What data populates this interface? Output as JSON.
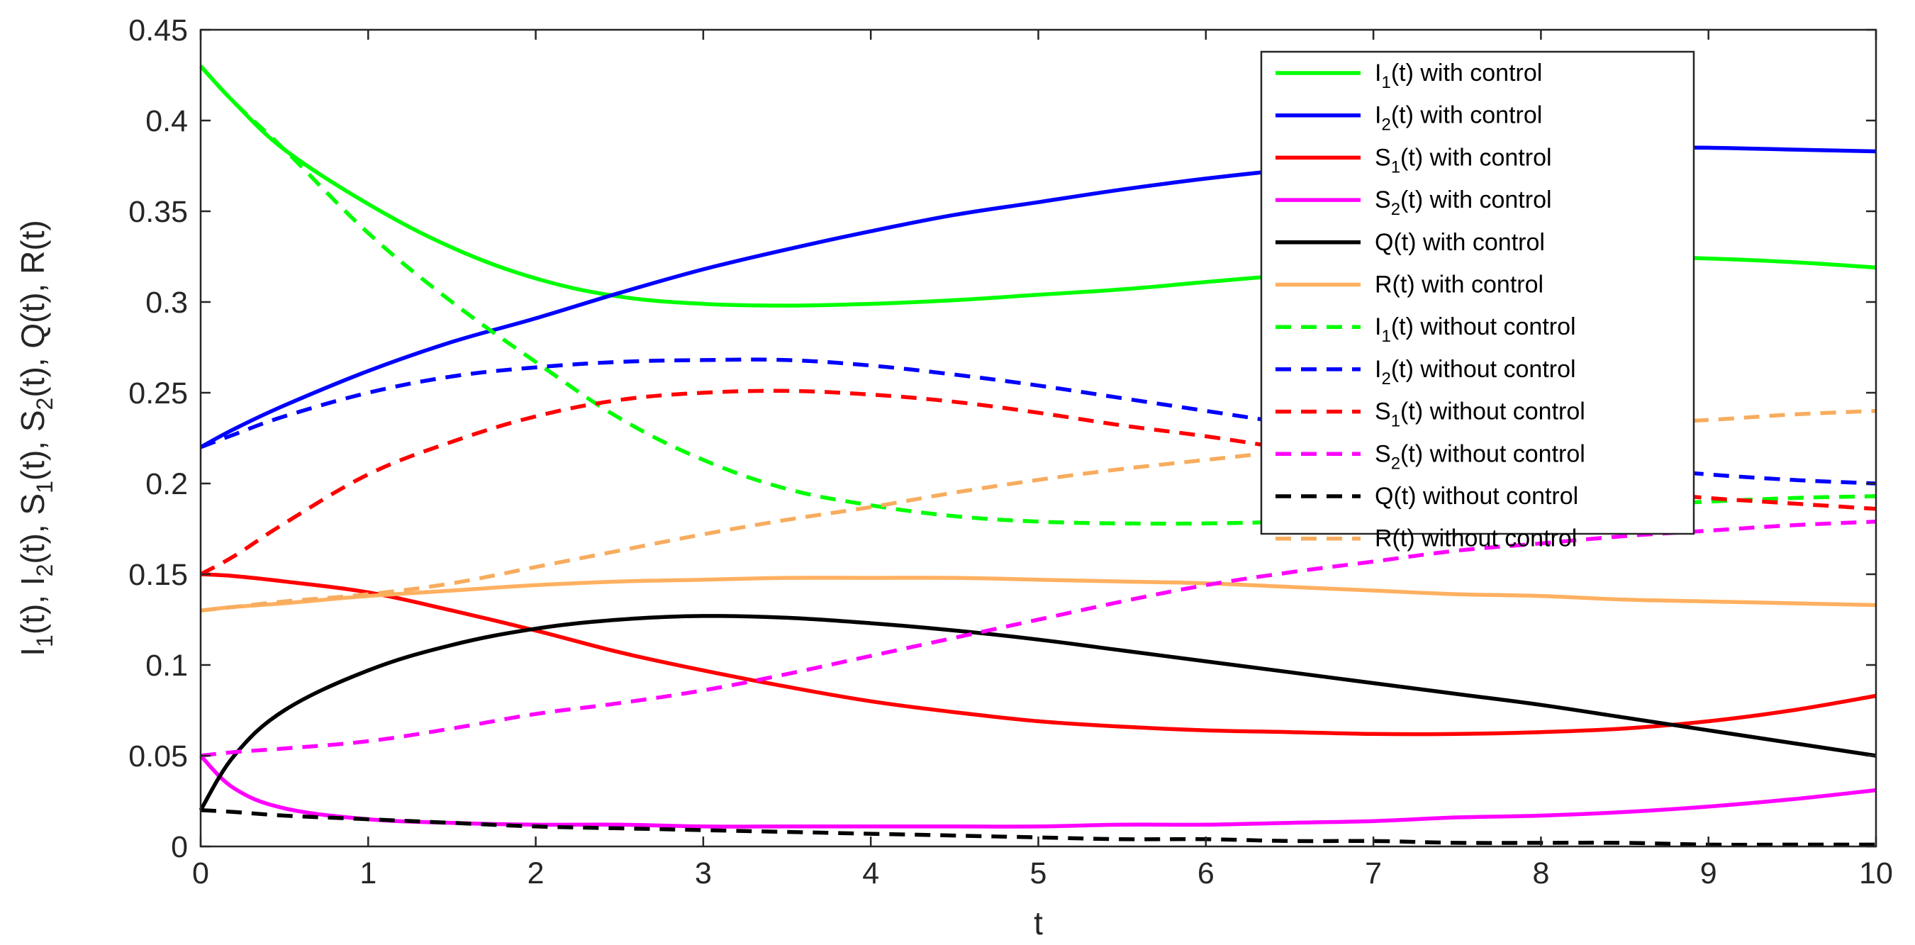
{
  "chart_data": {
    "type": "line",
    "xlabel": "t",
    "ylabel": "I_1(t), I_2(t), S_1(t), S_2(t), Q(t), R(t)",
    "xlim": [
      0,
      10
    ],
    "ylim": [
      0,
      0.45
    ],
    "xticks": [
      "0",
      "1",
      "2",
      "3",
      "4",
      "5",
      "6",
      "7",
      "8",
      "9",
      "10"
    ],
    "yticks": [
      "0",
      "0.05",
      "0.1",
      "0.15",
      "0.2",
      "0.25",
      "0.3",
      "0.35",
      "0.4",
      "0.45"
    ],
    "grid": false,
    "legend_position": "top-right",
    "x": [
      0,
      0.2,
      0.5,
      1,
      1.5,
      2,
      2.5,
      3,
      3.5,
      4,
      4.5,
      5,
      5.5,
      6,
      6.5,
      7,
      7.5,
      8,
      8.5,
      9,
      9.5,
      10
    ],
    "series": [
      {
        "name": "I_1(t) with control",
        "label": {
          "main": "I",
          "sub": "1",
          "rest": "(t) with control"
        },
        "color": "#00ff00",
        "dash": false,
        "values": [
          0.43,
          0.41,
          0.384,
          0.354,
          0.33,
          0.313,
          0.303,
          0.299,
          0.298,
          0.299,
          0.301,
          0.304,
          0.307,
          0.311,
          0.315,
          0.319,
          0.322,
          0.324,
          0.325,
          0.324,
          0.322,
          0.319
        ]
      },
      {
        "name": "I_2(t) with  control",
        "label": {
          "main": "I",
          "sub": "2",
          "rest": "(t) with  control"
        },
        "color": "#0000ff",
        "dash": false,
        "values": [
          0.22,
          0.23,
          0.243,
          0.262,
          0.278,
          0.291,
          0.305,
          0.318,
          0.329,
          0.339,
          0.348,
          0.355,
          0.362,
          0.368,
          0.373,
          0.377,
          0.381,
          0.384,
          0.385,
          0.385,
          0.384,
          0.383
        ]
      },
      {
        "name": "S_1(t) with control",
        "label": {
          "main": "S",
          "sub": "1",
          "rest": "(t) with control"
        },
        "color": "#ff0000",
        "dash": false,
        "values": [
          0.15,
          0.149,
          0.146,
          0.14,
          0.13,
          0.119,
          0.107,
          0.097,
          0.088,
          0.08,
          0.074,
          0.069,
          0.066,
          0.064,
          0.063,
          0.062,
          0.062,
          0.063,
          0.065,
          0.069,
          0.075,
          0.083
        ]
      },
      {
        "name": "S_2(t) with control",
        "label": {
          "main": "S",
          "sub": "2",
          "rest": "(t) with control"
        },
        "color": "#ff00ff",
        "dash": false,
        "values": [
          0.05,
          0.032,
          0.021,
          0.015,
          0.013,
          0.012,
          0.012,
          0.011,
          0.011,
          0.011,
          0.011,
          0.011,
          0.012,
          0.012,
          0.013,
          0.014,
          0.016,
          0.017,
          0.019,
          0.022,
          0.026,
          0.031
        ]
      },
      {
        "name": "Q(t) with control",
        "label": {
          "main": "Q(t) with control",
          "sub": "",
          "rest": ""
        },
        "color": "#000000",
        "dash": false,
        "values": [
          0.02,
          0.05,
          0.075,
          0.097,
          0.111,
          0.12,
          0.125,
          0.127,
          0.126,
          0.123,
          0.119,
          0.114,
          0.108,
          0.102,
          0.096,
          0.09,
          0.084,
          0.078,
          0.071,
          0.064,
          0.057,
          0.05
        ]
      },
      {
        "name": "R(t) with control",
        "label": {
          "main": "R(t) with control",
          "sub": "",
          "rest": ""
        },
        "color": "#ffb060",
        "dash": false,
        "values": [
          0.13,
          0.132,
          0.134,
          0.138,
          0.141,
          0.144,
          0.146,
          0.147,
          0.148,
          0.148,
          0.148,
          0.147,
          0.146,
          0.145,
          0.143,
          0.141,
          0.139,
          0.138,
          0.136,
          0.135,
          0.134,
          0.133
        ]
      },
      {
        "name": "I_1(t) without control",
        "label": {
          "main": "I",
          "sub": "1",
          "rest": "(t) without control"
        },
        "color": "#00ff00",
        "dash": true,
        "values": [
          0.43,
          0.41,
          0.384,
          0.338,
          0.3,
          0.267,
          0.236,
          0.213,
          0.197,
          0.188,
          0.182,
          0.179,
          0.178,
          0.178,
          0.179,
          0.181,
          0.183,
          0.186,
          0.188,
          0.19,
          0.192,
          0.193
        ]
      },
      {
        "name": "I_2(t) without control",
        "label": {
          "main": "I",
          "sub": "2",
          "rest": "(t) without control"
        },
        "color": "#0000ff",
        "dash": true,
        "values": [
          0.22,
          0.227,
          0.237,
          0.25,
          0.259,
          0.264,
          0.267,
          0.268,
          0.268,
          0.265,
          0.26,
          0.254,
          0.247,
          0.24,
          0.233,
          0.226,
          0.219,
          0.214,
          0.209,
          0.205,
          0.202,
          0.2
        ]
      },
      {
        "name": "S_1(t) without control",
        "label": {
          "main": "S",
          "sub": "1",
          "rest": "(t) without control"
        },
        "color": "#ff0000",
        "dash": true,
        "values": [
          0.15,
          0.16,
          0.178,
          0.205,
          0.223,
          0.237,
          0.246,
          0.25,
          0.251,
          0.249,
          0.245,
          0.239,
          0.232,
          0.226,
          0.219,
          0.212,
          0.206,
          0.2,
          0.196,
          0.192,
          0.189,
          0.186
        ]
      },
      {
        "name": "S_2(t) without control",
        "label": {
          "main": "S",
          "sub": "2",
          "rest": "(t) without control"
        },
        "color": "#ff00ff",
        "dash": true,
        "values": [
          0.05,
          0.052,
          0.054,
          0.058,
          0.065,
          0.073,
          0.079,
          0.086,
          0.095,
          0.105,
          0.115,
          0.125,
          0.135,
          0.144,
          0.151,
          0.157,
          0.163,
          0.167,
          0.171,
          0.174,
          0.177,
          0.179
        ]
      },
      {
        "name": "Q(t) without control",
        "label": {
          "main": "Q(t) without control",
          "sub": "",
          "rest": ""
        },
        "color": "#000000",
        "dash": true,
        "values": [
          0.02,
          0.019,
          0.017,
          0.015,
          0.013,
          0.011,
          0.01,
          0.009,
          0.008,
          0.007,
          0.006,
          0.005,
          0.004,
          0.004,
          0.003,
          0.003,
          0.002,
          0.002,
          0.002,
          0.001,
          0.001,
          0.001
        ]
      },
      {
        "name": "R(t) without control",
        "label": {
          "main": "R(t) without control",
          "sub": "",
          "rest": ""
        },
        "color": "#f7ac5e",
        "dash": true,
        "values": [
          0.13,
          0.132,
          0.135,
          0.139,
          0.145,
          0.154,
          0.163,
          0.172,
          0.18,
          0.187,
          0.195,
          0.202,
          0.208,
          0.213,
          0.218,
          0.223,
          0.227,
          0.23,
          0.233,
          0.235,
          0.238,
          0.24
        ]
      }
    ]
  }
}
